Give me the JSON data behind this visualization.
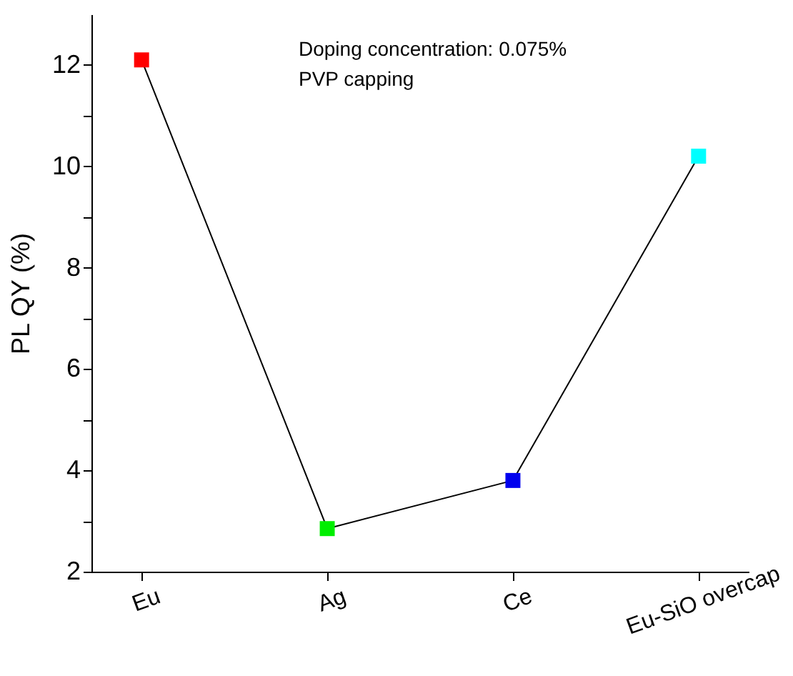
{
  "chart_data": {
    "type": "line",
    "ylabel": "PL QY (%)",
    "categories": [
      "Eu",
      "Ag",
      "Ce",
      "Eu-SiO overcap"
    ],
    "series": [
      {
        "color": "#000000",
        "values": [
          12.1,
          2.85,
          3.8,
          10.2
        ],
        "colors": [
          "#ff0000",
          "#00ee00",
          "#0000ee",
          "#00ffff"
        ]
      }
    ],
    "marker": "square",
    "line_style": "solid",
    "grid": false,
    "legend": false,
    "ylim": [
      2,
      13
    ],
    "yticks": [
      2,
      {
        "value": 3,
        "label": null
      },
      4,
      {
        "value": 5,
        "label": null
      },
      6,
      {
        "value": 7,
        "label": null
      },
      8,
      {
        "value": 9,
        "label": null
      },
      10,
      {
        "value": 11,
        "label": null
      },
      12
    ],
    "annotations": [
      "Doping concentration: 0.075%",
      "PVP capping"
    ]
  }
}
